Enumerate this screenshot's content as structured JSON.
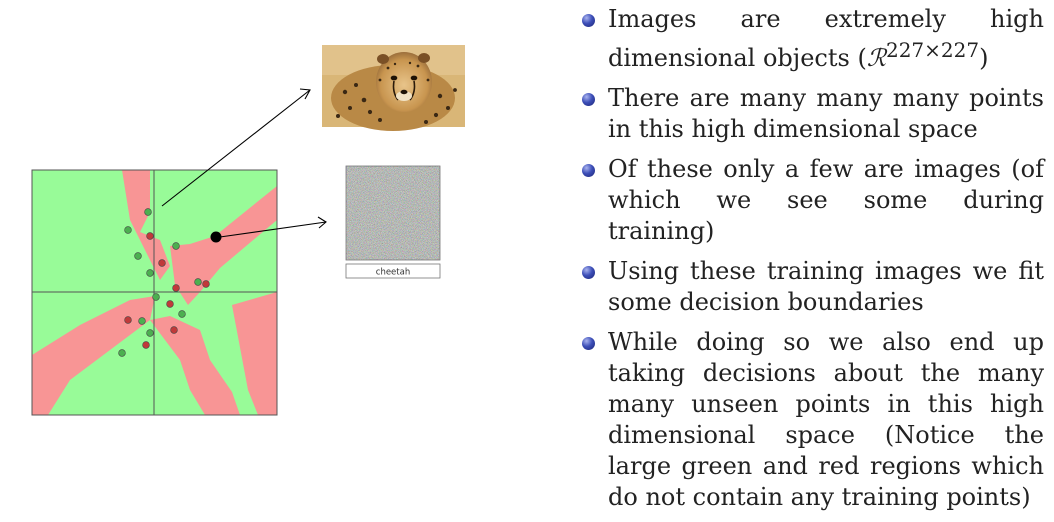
{
  "image_caption_label": "cheetah",
  "bullets": [
    {
      "text": "Images are extremely high dimensional objects (",
      "math": "ℛ",
      "sup": "227×227",
      "suffix": ")"
    },
    {
      "text": "There are many many many points in this high dimensional space"
    },
    {
      "text": "Of these only a few are images (of which we see some during training)"
    },
    {
      "text": "Using these training images we fit some decision boundaries"
    },
    {
      "text": "While doing so we also end up taking decisions about the many many unseen points in this high dimensional space (Notice the large green and red regions which do not contain any training points)"
    }
  ],
  "colors": {
    "green_region": "#98fb98",
    "red_region": "#f89595",
    "green_point": "#4caf50",
    "red_point": "#c03a3a"
  }
}
